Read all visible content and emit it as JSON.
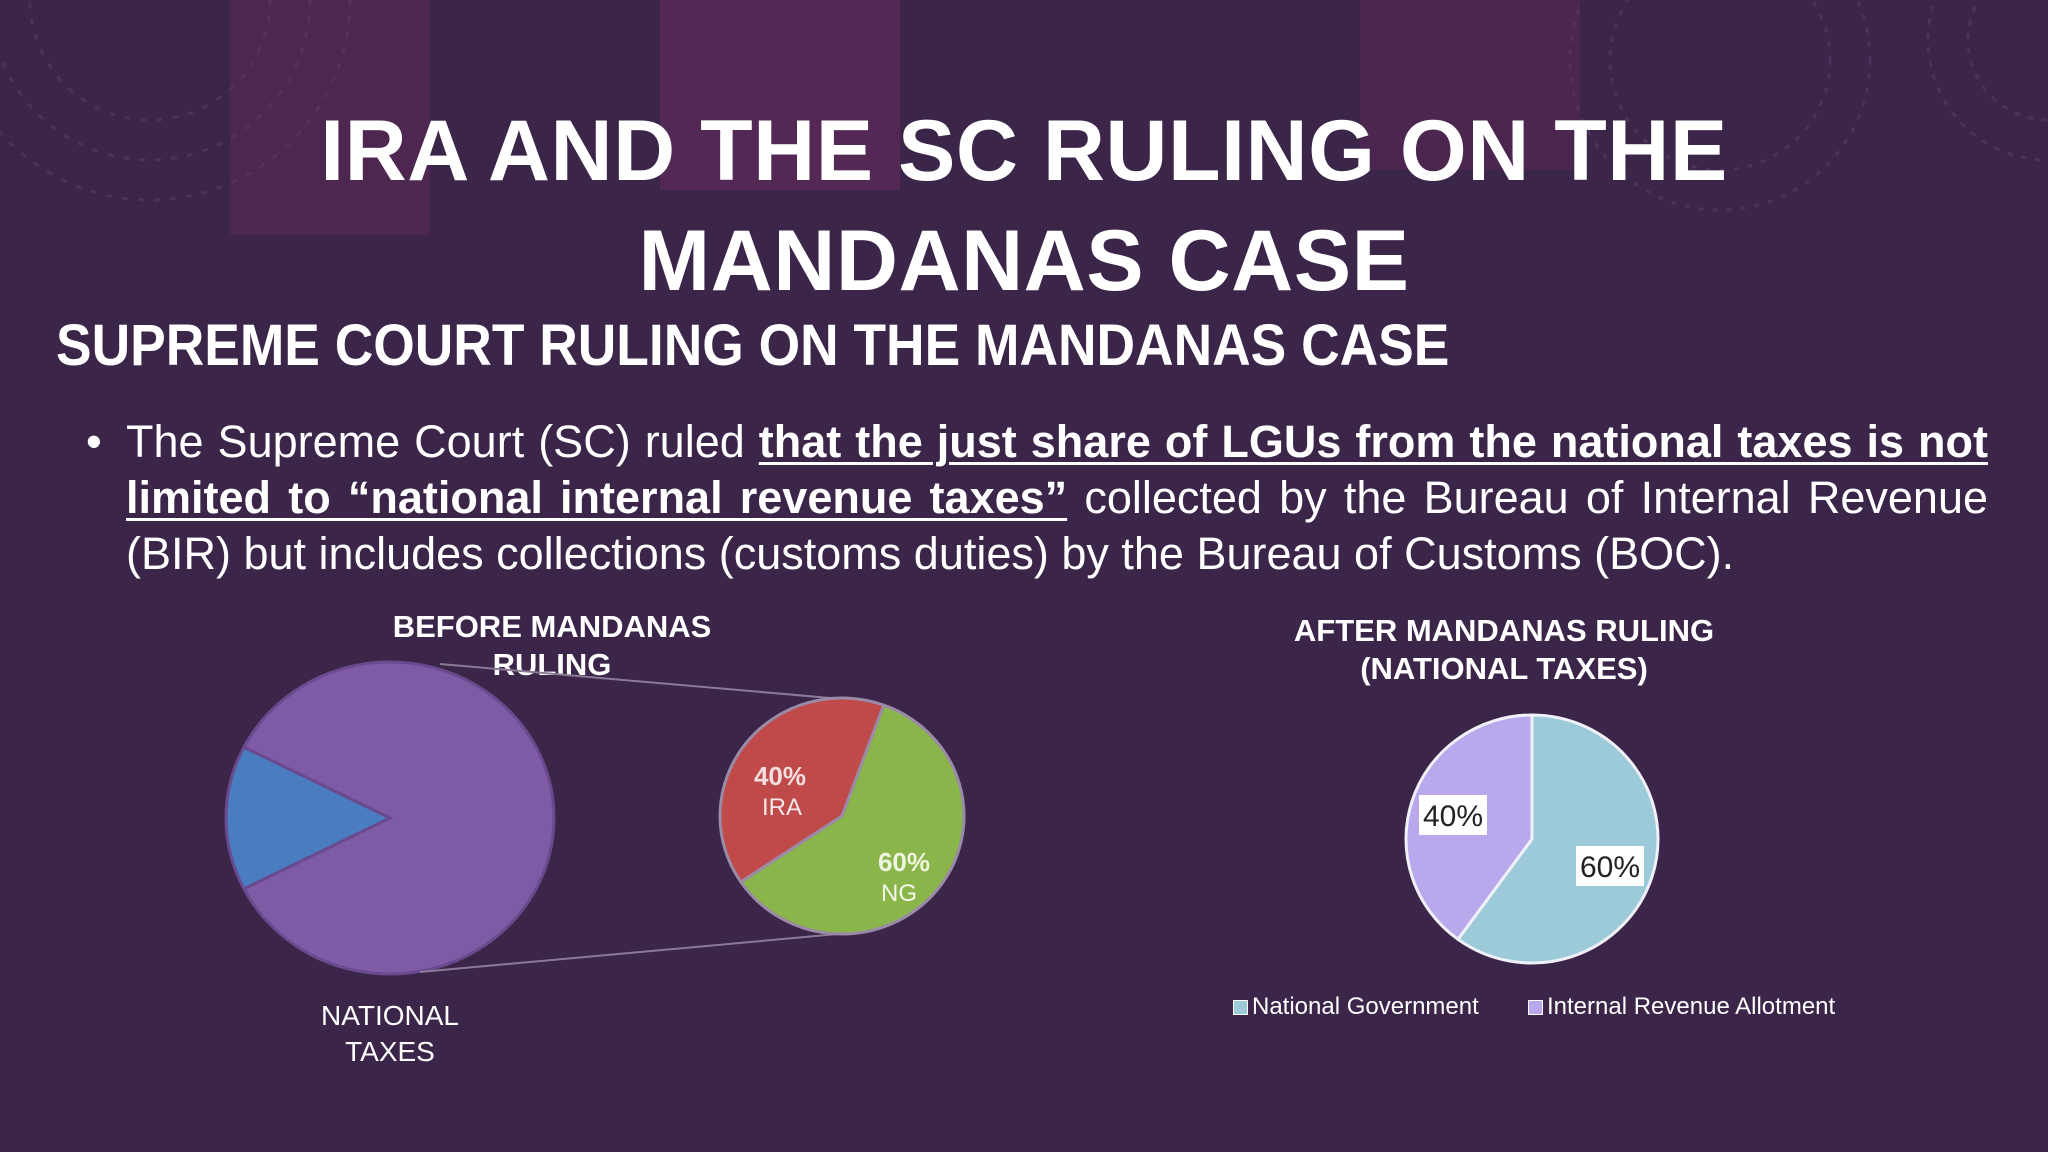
{
  "slide": {
    "title_line1": "IRA AND THE SC RULING ON THE",
    "title_line2": "MANDANAS CASE",
    "subtitle": "SUPREME COURT RULING ON THE MANDANAS CASE",
    "bullet": {
      "marker": "•",
      "text_before": "The Supreme Court (SC) ruled ",
      "text_emphasis": "that the just share of LGUs from the national taxes is not limited to “national internal revenue taxes”",
      "text_after": " collected by the Bureau of Internal Revenue (BIR) but includes collections (customs duties) by the Bureau of Customs (BOC)."
    }
  },
  "colors": {
    "background": "#3b2548",
    "national_taxes_purple": "#7f5ba6",
    "national_taxes_blue": "#4a7cc0",
    "ira_red": "#c04a4a",
    "ng_green": "#8ab54a",
    "after_ng_lightblue": "#9ccad8",
    "after_ira_lavender": "#b9a8ec"
  },
  "chart_data": [
    {
      "type": "pie",
      "title": "BEFORE MANDANAS RULING",
      "main_pie": {
        "label": "NATIONAL TAXES",
        "slices": [
          {
            "name": "",
            "value": 85,
            "color": "#7f5ba6"
          },
          {
            "name": "",
            "value": 15,
            "color": "#4a7cc0"
          }
        ]
      },
      "breakout_pie": {
        "slices": [
          {
            "name": "IRA",
            "value": 40,
            "label": "40%",
            "color": "#c04a4a"
          },
          {
            "name": "NG",
            "value": 60,
            "label": "60%",
            "color": "#8ab54a"
          }
        ]
      }
    },
    {
      "type": "pie",
      "title": "AFTER MANDANAS RULING (NATIONAL TAXES)",
      "slices": [
        {
          "name": "National Government",
          "value": 60,
          "label": "60%",
          "color": "#9ccad8"
        },
        {
          "name": "Internal Revenue Allotment",
          "value": 40,
          "label": "40%",
          "color": "#b9a8ec"
        }
      ],
      "legend_position": "bottom"
    }
  ]
}
